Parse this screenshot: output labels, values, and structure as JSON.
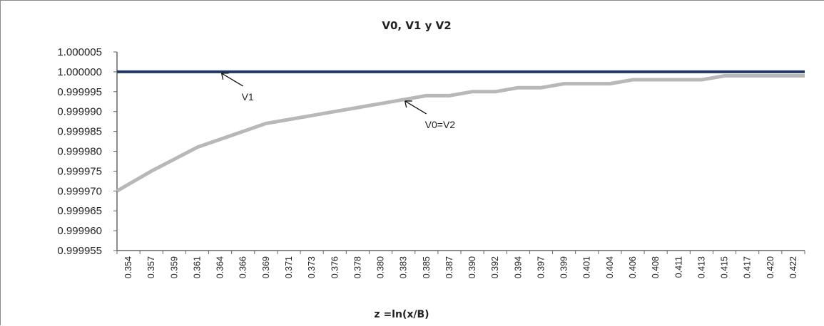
{
  "chart_data": {
    "type": "line",
    "title": "V0, V1 y V2",
    "xlabel": "z =ln(x/B)",
    "ylabel": "",
    "ylim": [
      0.999955,
      1.000005
    ],
    "y_ticks": [
      "1.000005",
      "1.000000",
      "0.999995",
      "0.999990",
      "0.999985",
      "0.999980",
      "0.999975",
      "0.999970",
      "0.999965",
      "0.999960",
      "0.999955"
    ],
    "y_tick_values": [
      1.000005,
      1.0,
      0.999995,
      0.99999,
      0.999985,
      0.99998,
      0.999975,
      0.99997,
      0.999965,
      0.99996,
      0.999955
    ],
    "categories": [
      "0.354",
      "0.357",
      "0.359",
      "0.361",
      "0.364",
      "0.366",
      "0.369",
      "0.371",
      "0.373",
      "0.376",
      "0.378",
      "0.380",
      "0.383",
      "0.385",
      "0.387",
      "0.390",
      "0.392",
      "0.394",
      "0.397",
      "0.399",
      "0.401",
      "0.404",
      "0.406",
      "0.408",
      "0.411",
      "0.413",
      "0.415",
      "0.417",
      "0.420",
      "0.422"
    ],
    "grid": false,
    "series": [
      {
        "name": "V1",
        "color": "#1f3864",
        "values": [
          1.0,
          1.0,
          1.0,
          1.0,
          1.0,
          1.0,
          1.0,
          1.0,
          1.0,
          1.0,
          1.0,
          1.0,
          1.0,
          1.0,
          1.0,
          1.0,
          1.0,
          1.0,
          1.0,
          1.0,
          1.0,
          1.0,
          1.0,
          1.0,
          1.0,
          1.0,
          1.0,
          1.0,
          1.0,
          1.0
        ]
      },
      {
        "name": "V0=V2",
        "color": "#b8b8b8",
        "values": [
          0.99997,
          0.999975,
          0.999978,
          0.999981,
          0.999983,
          0.999985,
          0.999987,
          0.999988,
          0.999989,
          0.99999,
          0.999991,
          0.999992,
          0.999993,
          0.999994,
          0.999994,
          0.999995,
          0.999995,
          0.999996,
          0.999996,
          0.999997,
          0.999997,
          0.999997,
          0.999998,
          0.999998,
          0.999998,
          0.999998,
          0.999999,
          0.999999,
          0.999999,
          0.999999
        ]
      }
    ],
    "annotations": [
      {
        "text": "V1",
        "series": 0,
        "index": 4
      },
      {
        "text": "V0=V2",
        "series": 1,
        "index": 12
      }
    ]
  }
}
